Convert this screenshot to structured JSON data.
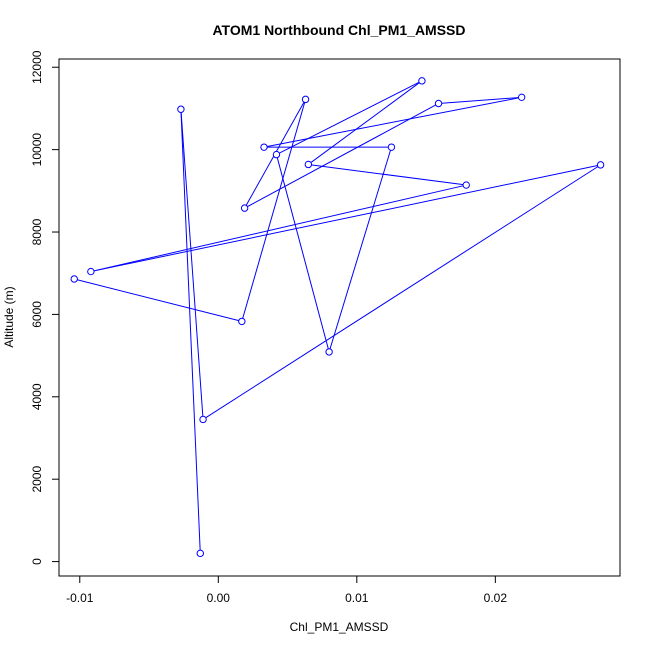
{
  "chart_data": {
    "type": "line",
    "title": "ATOM1 Northbound Chl_PM1_AMSSD",
    "xlabel": "Chl_PM1_AMSSD",
    "ylabel": "Altitude (m)",
    "xlim": [
      -0.0115,
      0.029
    ],
    "ylim": [
      -350,
      12200
    ],
    "x_ticks": [
      -0.01,
      0.0,
      0.01,
      0.02
    ],
    "x_tick_labels": [
      "-0.01",
      "0.00",
      "0.01",
      "0.02"
    ],
    "y_ticks": [
      0,
      2000,
      4000,
      6000,
      8000,
      10000,
      12000
    ],
    "y_tick_labels": [
      "0",
      "2000",
      "4000",
      "6000",
      "8000",
      "10000",
      "12000"
    ],
    "grid": false,
    "legend": "none",
    "series": [
      {
        "color": "#0000ff",
        "markers": "open-circle",
        "points": [
          {
            "x": -0.0013,
            "y": 200
          },
          {
            "x": -0.0027,
            "y": 10980
          },
          {
            "x": -0.0011,
            "y": 3450
          },
          {
            "x": 0.0276,
            "y": 9630
          },
          {
            "x": -0.0092,
            "y": 7040
          },
          {
            "x": 0.0179,
            "y": 9140
          },
          {
            "x": 0.0065,
            "y": 9640
          },
          {
            "x": 0.0147,
            "y": 11670
          },
          {
            "x": 0.0042,
            "y": 9880
          },
          {
            "x": 0.008,
            "y": 5090
          },
          {
            "x": 0.0125,
            "y": 10060
          },
          {
            "x": 0.0033,
            "y": 10060
          },
          {
            "x": 0.0219,
            "y": 11270
          },
          {
            "x": 0.0159,
            "y": 11120
          },
          {
            "x": 0.0019,
            "y": 8580
          },
          {
            "x": 0.0063,
            "y": 11220
          },
          {
            "x": 0.0017,
            "y": 5830
          },
          {
            "x": -0.0104,
            "y": 6860
          }
        ]
      }
    ]
  }
}
